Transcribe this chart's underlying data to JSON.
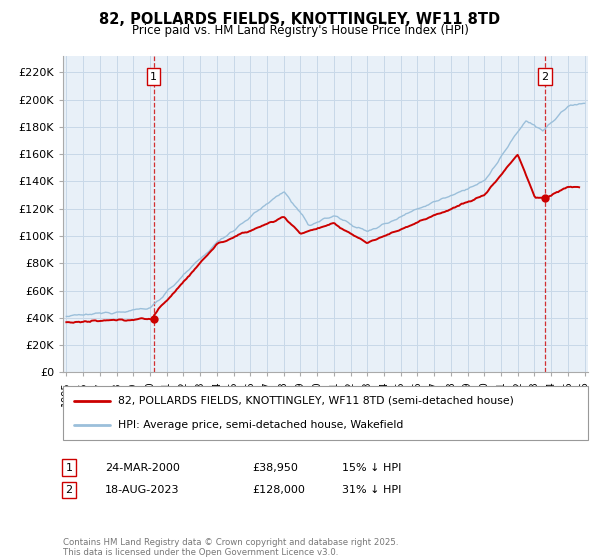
{
  "title": "82, POLLARDS FIELDS, KNOTTINGLEY, WF11 8TD",
  "subtitle": "Price paid vs. HM Land Registry's House Price Index (HPI)",
  "ylabel_ticks": [
    "£0",
    "£20K",
    "£40K",
    "£60K",
    "£80K",
    "£100K",
    "£120K",
    "£140K",
    "£160K",
    "£180K",
    "£200K",
    "£220K"
  ],
  "ylabel_values": [
    0,
    20000,
    40000,
    60000,
    80000,
    100000,
    120000,
    140000,
    160000,
    180000,
    200000,
    220000
  ],
  "ylim": [
    0,
    232000
  ],
  "xlim_min": 1994.8,
  "xlim_max": 2026.2,
  "hpi_color": "#9bbfda",
  "price_color": "#cc0000",
  "marker1_x": 2000.22,
  "marker1_y": 38950,
  "marker2_x": 2023.63,
  "marker2_y": 128000,
  "legend_line1": "82, POLLARDS FIELDS, KNOTTINGLEY, WF11 8TD (semi-detached house)",
  "legend_line2": "HPI: Average price, semi-detached house, Wakefield",
  "table_row1": [
    "1",
    "24-MAR-2000",
    "£38,950",
    "15% ↓ HPI"
  ],
  "table_row2": [
    "2",
    "18-AUG-2023",
    "£128,000",
    "31% ↓ HPI"
  ],
  "footnote": "Contains HM Land Registry data © Crown copyright and database right 2025.\nThis data is licensed under the Open Government Licence v3.0.",
  "bg_color": "#ffffff",
  "grid_color": "#c8d8e8",
  "plot_bg_color": "#e8f0f8"
}
